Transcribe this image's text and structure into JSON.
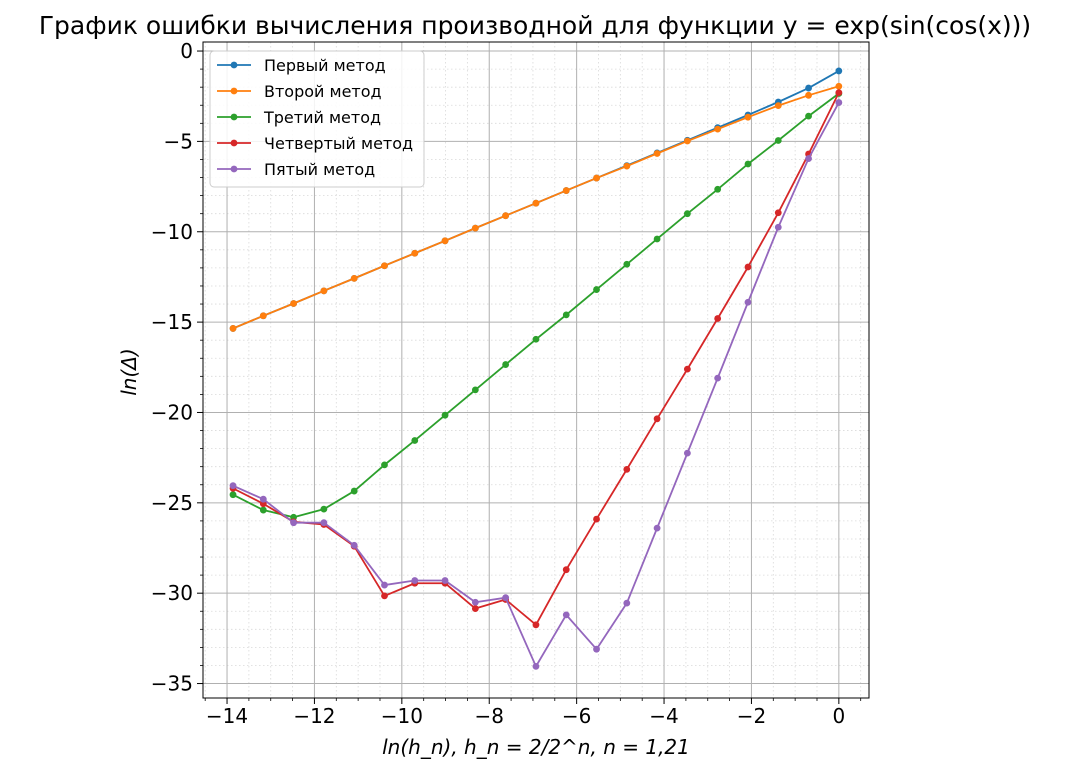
{
  "chart_data": {
    "type": "line",
    "title": "График ошибки вычисления производной для функции y = exp(sin(cos(x)))",
    "xlabel": "ln(h_n), h_n = 2/2^n, n = 1,21",
    "ylabel": "ln(Δ)",
    "xlim": [
      -14.55,
      0.69
    ],
    "ylim": [
      -35.8,
      0.5
    ],
    "xticks": [
      -14,
      -12,
      -10,
      -8,
      -6,
      -4,
      -2,
      0
    ],
    "yticks": [
      0,
      -5,
      -10,
      -15,
      -20,
      -25,
      -30,
      -35
    ],
    "xtick_labels": [
      "−14",
      "−12",
      "−10",
      "−8",
      "−6",
      "−4",
      "−2",
      "0"
    ],
    "ytick_labels": [
      "0",
      "−5",
      "−10",
      "−15",
      "−20",
      "−25",
      "−30",
      "−35"
    ],
    "grid": true,
    "legend_position": "top-left",
    "x": [
      -13.863,
      -13.17,
      -12.477,
      -11.784,
      -11.09,
      -10.397,
      -9.704,
      -9.011,
      -8.318,
      -7.625,
      -6.931,
      -6.238,
      -5.545,
      -4.852,
      -4.159,
      -3.466,
      -2.773,
      -2.079,
      -1.386,
      -0.693,
      0.0
    ],
    "series": [
      {
        "name": "Первый метод",
        "color": "#1f77b4",
        "values": [
          -15.35,
          -14.65,
          -13.97,
          -13.27,
          -12.58,
          -11.88,
          -11.19,
          -10.5,
          -9.8,
          -9.11,
          -8.42,
          -7.72,
          -7.03,
          -6.34,
          -5.64,
          -4.94,
          -4.24,
          -3.54,
          -2.82,
          -2.05,
          -1.1
        ]
      },
      {
        "name": "Второй метод",
        "color": "#ff7f0e",
        "values": [
          -15.35,
          -14.65,
          -13.97,
          -13.27,
          -12.58,
          -11.88,
          -11.19,
          -10.5,
          -9.8,
          -9.11,
          -8.42,
          -7.72,
          -7.03,
          -6.37,
          -5.67,
          -4.98,
          -4.32,
          -3.66,
          -3.02,
          -2.45,
          -1.95
        ]
      },
      {
        "name": "Третий метод",
        "color": "#2ca02c",
        "values": [
          -24.55,
          -25.4,
          -25.8,
          -25.35,
          -24.35,
          -22.9,
          -21.55,
          -20.15,
          -18.75,
          -17.35,
          -15.95,
          -14.6,
          -13.2,
          -11.8,
          -10.4,
          -9.0,
          -7.65,
          -6.25,
          -4.95,
          -3.6,
          -2.35
        ]
      },
      {
        "name": "Четвертый метод",
        "color": "#d62728",
        "values": [
          -24.2,
          -25.05,
          -26.05,
          -26.2,
          -27.4,
          -30.15,
          -29.45,
          -29.45,
          -30.85,
          -30.35,
          -31.75,
          -28.7,
          -25.9,
          -23.15,
          -20.35,
          -17.6,
          -14.8,
          -11.95,
          -8.95,
          -5.7,
          -2.3
        ]
      },
      {
        "name": "Пятый метод",
        "color": "#9467bd",
        "values": [
          -24.05,
          -24.8,
          -26.1,
          -26.1,
          -27.35,
          -29.55,
          -29.3,
          -29.3,
          -30.5,
          -30.25,
          -34.05,
          -31.2,
          -33.1,
          -30.55,
          -26.4,
          -22.25,
          -18.1,
          -13.9,
          -9.75,
          -5.95,
          -2.85
        ]
      }
    ]
  }
}
